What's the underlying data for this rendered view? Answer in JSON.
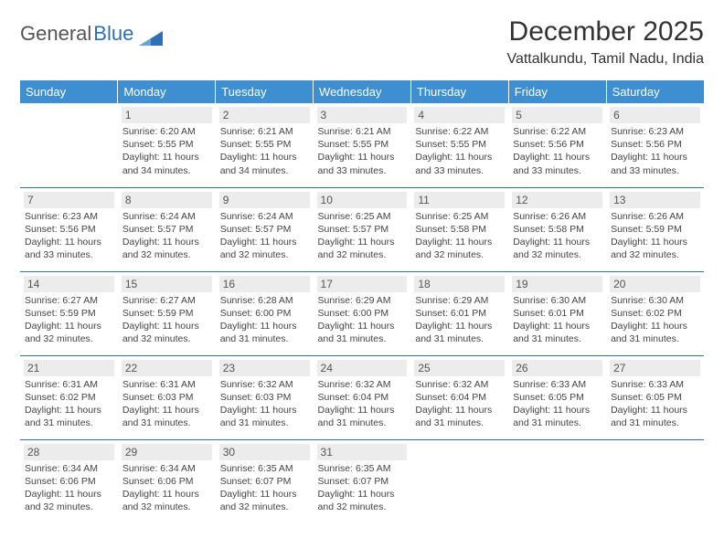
{
  "brand": {
    "part1": "General",
    "part2": "Blue",
    "accent_color": "#2e6fb5"
  },
  "header": {
    "title": "December 2025",
    "location": "Vattalkundu, Tamil Nadu, India",
    "title_fontsize": 30,
    "location_fontsize": 16
  },
  "calendar": {
    "header_bg": "#3d8fd1",
    "header_text_color": "#ffffff",
    "daynum_bg": "#ececec",
    "border_color": "#2e6fb5",
    "detail_fontsize": 10.5,
    "daysOfWeek": [
      "Sunday",
      "Monday",
      "Tuesday",
      "Wednesday",
      "Thursday",
      "Friday",
      "Saturday"
    ],
    "weeks": [
      [
        {
          "blank": true
        },
        {
          "num": "1",
          "sunrise": "Sunrise: 6:20 AM",
          "sunset": "Sunset: 5:55 PM",
          "daylight1": "Daylight: 11 hours",
          "daylight2": "and 34 minutes."
        },
        {
          "num": "2",
          "sunrise": "Sunrise: 6:21 AM",
          "sunset": "Sunset: 5:55 PM",
          "daylight1": "Daylight: 11 hours",
          "daylight2": "and 34 minutes."
        },
        {
          "num": "3",
          "sunrise": "Sunrise: 6:21 AM",
          "sunset": "Sunset: 5:55 PM",
          "daylight1": "Daylight: 11 hours",
          "daylight2": "and 33 minutes."
        },
        {
          "num": "4",
          "sunrise": "Sunrise: 6:22 AM",
          "sunset": "Sunset: 5:55 PM",
          "daylight1": "Daylight: 11 hours",
          "daylight2": "and 33 minutes."
        },
        {
          "num": "5",
          "sunrise": "Sunrise: 6:22 AM",
          "sunset": "Sunset: 5:56 PM",
          "daylight1": "Daylight: 11 hours",
          "daylight2": "and 33 minutes."
        },
        {
          "num": "6",
          "sunrise": "Sunrise: 6:23 AM",
          "sunset": "Sunset: 5:56 PM",
          "daylight1": "Daylight: 11 hours",
          "daylight2": "and 33 minutes."
        }
      ],
      [
        {
          "num": "7",
          "sunrise": "Sunrise: 6:23 AM",
          "sunset": "Sunset: 5:56 PM",
          "daylight1": "Daylight: 11 hours",
          "daylight2": "and 33 minutes."
        },
        {
          "num": "8",
          "sunrise": "Sunrise: 6:24 AM",
          "sunset": "Sunset: 5:57 PM",
          "daylight1": "Daylight: 11 hours",
          "daylight2": "and 32 minutes."
        },
        {
          "num": "9",
          "sunrise": "Sunrise: 6:24 AM",
          "sunset": "Sunset: 5:57 PM",
          "daylight1": "Daylight: 11 hours",
          "daylight2": "and 32 minutes."
        },
        {
          "num": "10",
          "sunrise": "Sunrise: 6:25 AM",
          "sunset": "Sunset: 5:57 PM",
          "daylight1": "Daylight: 11 hours",
          "daylight2": "and 32 minutes."
        },
        {
          "num": "11",
          "sunrise": "Sunrise: 6:25 AM",
          "sunset": "Sunset: 5:58 PM",
          "daylight1": "Daylight: 11 hours",
          "daylight2": "and 32 minutes."
        },
        {
          "num": "12",
          "sunrise": "Sunrise: 6:26 AM",
          "sunset": "Sunset: 5:58 PM",
          "daylight1": "Daylight: 11 hours",
          "daylight2": "and 32 minutes."
        },
        {
          "num": "13",
          "sunrise": "Sunrise: 6:26 AM",
          "sunset": "Sunset: 5:59 PM",
          "daylight1": "Daylight: 11 hours",
          "daylight2": "and 32 minutes."
        }
      ],
      [
        {
          "num": "14",
          "sunrise": "Sunrise: 6:27 AM",
          "sunset": "Sunset: 5:59 PM",
          "daylight1": "Daylight: 11 hours",
          "daylight2": "and 32 minutes."
        },
        {
          "num": "15",
          "sunrise": "Sunrise: 6:27 AM",
          "sunset": "Sunset: 5:59 PM",
          "daylight1": "Daylight: 11 hours",
          "daylight2": "and 32 minutes."
        },
        {
          "num": "16",
          "sunrise": "Sunrise: 6:28 AM",
          "sunset": "Sunset: 6:00 PM",
          "daylight1": "Daylight: 11 hours",
          "daylight2": "and 31 minutes."
        },
        {
          "num": "17",
          "sunrise": "Sunrise: 6:29 AM",
          "sunset": "Sunset: 6:00 PM",
          "daylight1": "Daylight: 11 hours",
          "daylight2": "and 31 minutes."
        },
        {
          "num": "18",
          "sunrise": "Sunrise: 6:29 AM",
          "sunset": "Sunset: 6:01 PM",
          "daylight1": "Daylight: 11 hours",
          "daylight2": "and 31 minutes."
        },
        {
          "num": "19",
          "sunrise": "Sunrise: 6:30 AM",
          "sunset": "Sunset: 6:01 PM",
          "daylight1": "Daylight: 11 hours",
          "daylight2": "and 31 minutes."
        },
        {
          "num": "20",
          "sunrise": "Sunrise: 6:30 AM",
          "sunset": "Sunset: 6:02 PM",
          "daylight1": "Daylight: 11 hours",
          "daylight2": "and 31 minutes."
        }
      ],
      [
        {
          "num": "21",
          "sunrise": "Sunrise: 6:31 AM",
          "sunset": "Sunset: 6:02 PM",
          "daylight1": "Daylight: 11 hours",
          "daylight2": "and 31 minutes."
        },
        {
          "num": "22",
          "sunrise": "Sunrise: 6:31 AM",
          "sunset": "Sunset: 6:03 PM",
          "daylight1": "Daylight: 11 hours",
          "daylight2": "and 31 minutes."
        },
        {
          "num": "23",
          "sunrise": "Sunrise: 6:32 AM",
          "sunset": "Sunset: 6:03 PM",
          "daylight1": "Daylight: 11 hours",
          "daylight2": "and 31 minutes."
        },
        {
          "num": "24",
          "sunrise": "Sunrise: 6:32 AM",
          "sunset": "Sunset: 6:04 PM",
          "daylight1": "Daylight: 11 hours",
          "daylight2": "and 31 minutes."
        },
        {
          "num": "25",
          "sunrise": "Sunrise: 6:32 AM",
          "sunset": "Sunset: 6:04 PM",
          "daylight1": "Daylight: 11 hours",
          "daylight2": "and 31 minutes."
        },
        {
          "num": "26",
          "sunrise": "Sunrise: 6:33 AM",
          "sunset": "Sunset: 6:05 PM",
          "daylight1": "Daylight: 11 hours",
          "daylight2": "and 31 minutes."
        },
        {
          "num": "27",
          "sunrise": "Sunrise: 6:33 AM",
          "sunset": "Sunset: 6:05 PM",
          "daylight1": "Daylight: 11 hours",
          "daylight2": "and 31 minutes."
        }
      ],
      [
        {
          "num": "28",
          "sunrise": "Sunrise: 6:34 AM",
          "sunset": "Sunset: 6:06 PM",
          "daylight1": "Daylight: 11 hours",
          "daylight2": "and 32 minutes."
        },
        {
          "num": "29",
          "sunrise": "Sunrise: 6:34 AM",
          "sunset": "Sunset: 6:06 PM",
          "daylight1": "Daylight: 11 hours",
          "daylight2": "and 32 minutes."
        },
        {
          "num": "30",
          "sunrise": "Sunrise: 6:35 AM",
          "sunset": "Sunset: 6:07 PM",
          "daylight1": "Daylight: 11 hours",
          "daylight2": "and 32 minutes."
        },
        {
          "num": "31",
          "sunrise": "Sunrise: 6:35 AM",
          "sunset": "Sunset: 6:07 PM",
          "daylight1": "Daylight: 11 hours",
          "daylight2": "and 32 minutes."
        },
        {
          "blank": true
        },
        {
          "blank": true
        },
        {
          "blank": true
        }
      ]
    ]
  }
}
